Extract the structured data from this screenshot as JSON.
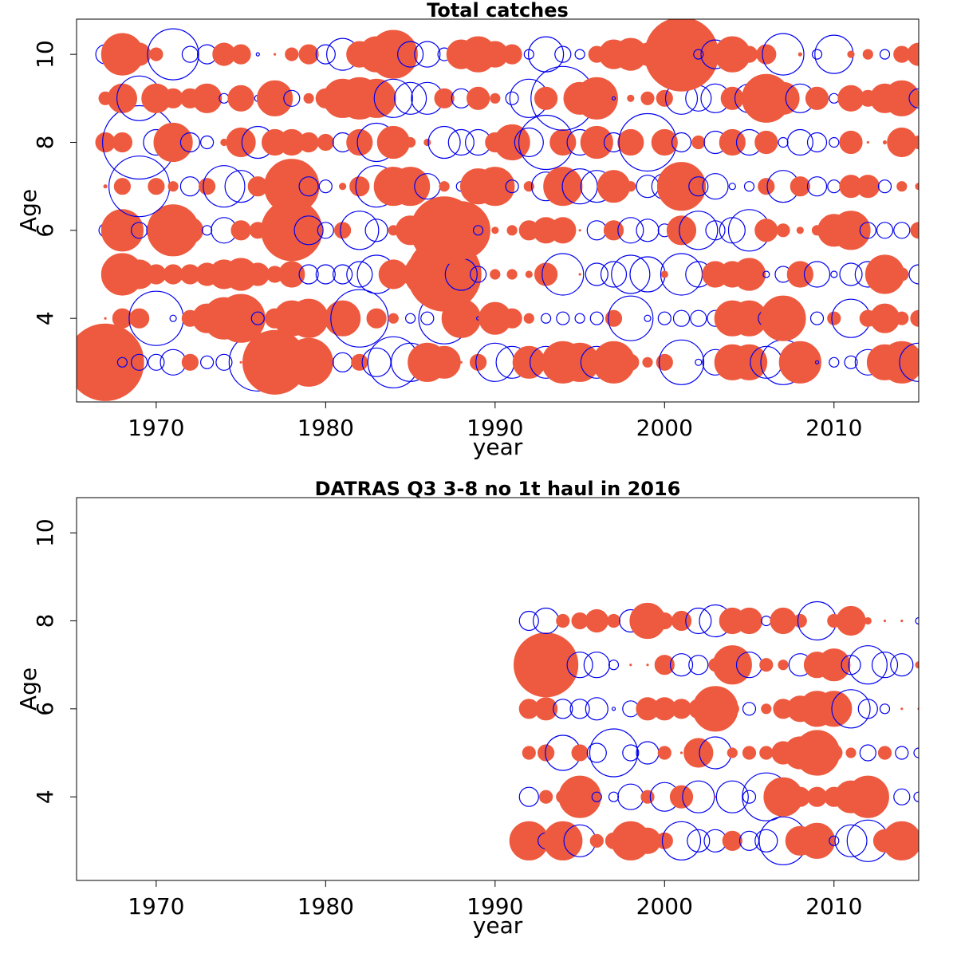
{
  "colors": {
    "positive": "#EE5A3F",
    "negative": "#0000EE",
    "axis": "#000000"
  },
  "chart_data": [
    {
      "type": "scatter",
      "subtype": "bubble-residuals",
      "title": "Total catches",
      "xlabel": "year",
      "ylabel": "Age",
      "xlim": [
        1965.3,
        2015.0
      ],
      "ylim": [
        2.1,
        10.8
      ],
      "xticks": [
        1970,
        1980,
        1990,
        2000,
        2010
      ],
      "yticks": [
        4,
        6,
        8,
        10
      ],
      "ages": [
        3,
        4,
        5,
        6,
        7,
        8,
        9,
        10
      ],
      "years": [
        1967,
        1968,
        1969,
        1970,
        1971,
        1972,
        1973,
        1974,
        1975,
        1976,
        1977,
        1978,
        1979,
        1980,
        1981,
        1982,
        1983,
        1984,
        1985,
        1986,
        1987,
        1988,
        1989,
        1990,
        1991,
        1992,
        1993,
        1994,
        1995,
        1996,
        1997,
        1998,
        1999,
        2000,
        2001,
        2002,
        2003,
        2004,
        2005,
        2006,
        2007,
        2008,
        2009,
        2010,
        2011,
        2012,
        2013,
        2014,
        2015
      ],
      "residuals": {
        "3": [
          2.4,
          -0.3,
          -0.5,
          -0.5,
          -0.8,
          0.5,
          -0.4,
          -0.5,
          0.05,
          -1.8,
          2.0,
          -0.2,
          1.5,
          0.5,
          -0.6,
          0.5,
          -0.9,
          -1.6,
          -1.2,
          1.2,
          1.0,
          0.05,
          0.5,
          -1.2,
          -1.0,
          1.0,
          -1.0,
          1.3,
          1.2,
          -1.0,
          1.3,
          0.5,
          0.3,
          0.5,
          -1.4,
          -0.2,
          -0.8,
          1.1,
          1.1,
          -1.0,
          -1.4,
          1.3,
          -0.1,
          -0.3,
          -0.4,
          -0.8,
          1.1,
          1.3,
          -1.2
        ],
        "4": [
          0.05,
          0.6,
          0.6,
          -1.7,
          -0.2,
          0.5,
          0.9,
          1.3,
          1.5,
          -0.4,
          0.6,
          1.1,
          1.2,
          0.05,
          1.1,
          -1.8,
          0.6,
          0.3,
          -0.3,
          -0.4,
          -1.6,
          1.2,
          -0.1,
          1.0,
          0.6,
          0.3,
          -0.3,
          -0.4,
          -0.3,
          -0.4,
          0.5,
          -1.4,
          -0.2,
          -0.4,
          -0.5,
          -0.5,
          -0.5,
          1.1,
          1.1,
          -0.5,
          1.4,
          0.05,
          -0.4,
          0.4,
          -1.2,
          0.5,
          0.9,
          0.4,
          0.5
        ],
        "5": [
          -0.2,
          1.3,
          0.9,
          0.6,
          0.6,
          0.6,
          0.7,
          0.9,
          1.0,
          0.7,
          0.5,
          0.8,
          -0.6,
          -0.6,
          -0.6,
          -0.8,
          -1.2,
          0.9,
          0.6,
          1.4,
          2.3,
          -1.0,
          -0.5,
          0.3,
          0.3,
          0.2,
          0.7,
          -1.3,
          0.05,
          -0.7,
          -0.8,
          -1.2,
          -1.1,
          0.2,
          -1.3,
          -0.8,
          0.8,
          0.8,
          1.0,
          -0.2,
          -0.5,
          0.8,
          -0.8,
          -0.2,
          -0.7,
          -0.8,
          1.2,
          0.4,
          -0.6
        ],
        "6": [
          -0.4,
          1.3,
          -0.5,
          -0.6,
          1.6,
          0.8,
          -0.3,
          -0.8,
          0.6,
          0.5,
          0.9,
          1.9,
          -0.9,
          -0.5,
          0.5,
          -1.2,
          -0.7,
          0.3,
          0.9,
          0.3,
          2.1,
          1.8,
          -0.3,
          0.2,
          0.3,
          0.6,
          0.8,
          0.8,
          0.05,
          -0.6,
          0.6,
          -0.8,
          -0.7,
          -0.4,
          0.9,
          -1.2,
          -0.6,
          -0.8,
          -1.3,
          0.7,
          0.4,
          0.2,
          0.3,
          1.0,
          1.2,
          -0.5,
          -0.5,
          -0.5,
          0.5
        ],
        "7": [
          0.1,
          0.5,
          -1.9,
          0.5,
          0.3,
          -0.6,
          0.5,
          -1.3,
          -1.0,
          0.6,
          -0.5,
          1.7,
          -0.6,
          -0.4,
          0.2,
          0.6,
          -1.3,
          1.2,
          1.2,
          -0.8,
          0.3,
          -0.3,
          1.1,
          1.2,
          -0.4,
          0.3,
          -0.9,
          1.2,
          -1.1,
          -1.0,
          1.0,
          0.3,
          -0.7,
          -0.8,
          1.5,
          -0.6,
          -0.8,
          -0.2,
          -0.3,
          0.5,
          -1.0,
          0.6,
          -0.6,
          -0.4,
          0.7,
          0.7,
          -0.4,
          0.3,
          0.2
        ],
        "8": [
          0.6,
          0.6,
          -2.3,
          -0.8,
          1.2,
          -0.6,
          -0.4,
          0.2,
          0.9,
          -1.0,
          0.8,
          0.8,
          0.6,
          0.5,
          -0.6,
          0.8,
          -1.2,
          1.0,
          0.3,
          0.2,
          -1.0,
          -0.8,
          -0.8,
          0.6,
          1.1,
          -0.9,
          -1.7,
          0.8,
          -0.8,
          1.0,
          -0.6,
          0.8,
          -1.8,
          0.8,
          -0.6,
          0.4,
          -0.7,
          0.8,
          -0.8,
          0.7,
          -0.3,
          -0.8,
          -0.6,
          -0.3,
          0.7,
          0.05,
          0.1,
          0.9,
          0.4
        ],
        "9": [
          0.4,
          0.9,
          -1.4,
          0.9,
          0.6,
          0.6,
          0.9,
          -0.3,
          0.8,
          -0.2,
          1.1,
          -0.5,
          0.3,
          0.6,
          1.2,
          1.3,
          1.2,
          -1.2,
          -1.0,
          -1.0,
          0.6,
          -0.6,
          0.7,
          0.3,
          -0.4,
          -1.2,
          0.7,
          -2.0,
          1.0,
          1.3,
          -0.1,
          0.2,
          0.4,
          0.5,
          -1.0,
          -0.8,
          -0.9,
          0.7,
          -0.9,
          1.5,
          1.0,
          -0.9,
          0.7,
          -0.3,
          0.8,
          0.5,
          0.9,
          1.1,
          -0.6
        ],
        "10": [
          -0.6,
          1.3,
          0.7,
          0.4,
          -1.6,
          -0.5,
          -0.6,
          0.7,
          0.6,
          -0.1,
          0.05,
          0.4,
          0.6,
          -0.6,
          -1.0,
          0.8,
          1.1,
          1.5,
          -0.8,
          -0.8,
          -0.4,
          0.9,
          1.1,
          0.8,
          0.6,
          -0.3,
          -1.1,
          -0.5,
          -0.3,
          0.5,
          0.9,
          1.0,
          0.7,
          1.2,
          2.3,
          -0.3,
          -0.9,
          1.1,
          0.5,
          0.6,
          -1.3,
          0.1,
          -0.3,
          -1.2,
          0.2,
          0.3,
          -0.3,
          0.5,
          0.7
        ]
      }
    },
    {
      "type": "scatter",
      "subtype": "bubble-residuals",
      "title": "DATRAS Q3 3-8 no 1t haul in 2016",
      "xlabel": "year",
      "ylabel": "Age",
      "xlim": [
        1965.3,
        2015.0
      ],
      "ylim": [
        2.1,
        10.8
      ],
      "xticks": [
        1970,
        1980,
        1990,
        2000,
        2010
      ],
      "yticks": [
        4,
        6,
        8,
        10
      ],
      "ages": [
        3,
        4,
        5,
        6,
        7,
        8
      ],
      "years": [
        1992,
        1993,
        1994,
        1995,
        1996,
        1997,
        1998,
        1999,
        2000,
        2001,
        2002,
        2003,
        2004,
        2005,
        2006,
        2007,
        2008,
        2009,
        2010,
        2011,
        2012,
        2013,
        2014,
        2015
      ],
      "residuals": {
        "3": [
          1.2,
          -0.5,
          1.2,
          -1.0,
          0.4,
          0.5,
          1.2,
          0.8,
          0.5,
          -1.2,
          -0.7,
          -0.7,
          0.6,
          -0.6,
          -0.7,
          -1.5,
          0.9,
          1.1,
          -0.3,
          -1.0,
          -1.3,
          0.7,
          1.2,
          0.5
        ],
        "4": [
          -0.6,
          0.4,
          0.4,
          1.3,
          -0.3,
          -0.3,
          -0.8,
          0.4,
          -0.9,
          0.7,
          -1.0,
          0.05,
          -1.0,
          -0.4,
          -1.5,
          1.2,
          0.6,
          0.6,
          0.6,
          1.0,
          1.3,
          0.05,
          -0.5,
          -0.3
        ],
        "5": [
          0.4,
          0.5,
          -1.1,
          0.5,
          -0.6,
          -1.5,
          -0.5,
          -0.7,
          0.4,
          0.05,
          0.9,
          -1.0,
          0.3,
          0.4,
          0.4,
          0.7,
          1.0,
          1.4,
          0.5,
          0.3,
          -0.5,
          0.4,
          -0.4,
          -0.3
        ],
        "6": [
          0.6,
          0.7,
          -0.6,
          -0.6,
          -0.7,
          -0.1,
          -0.5,
          0.7,
          0.7,
          0.6,
          0.6,
          1.4,
          0.4,
          -0.4,
          0.3,
          0.6,
          0.8,
          1.1,
          1.1,
          -1.2,
          -0.6,
          -0.3,
          0.05,
          0.05
        ],
        "7": [
          -0.6,
          2.0,
          0.8,
          -0.8,
          -0.8,
          -0.3,
          0.05,
          0.05,
          0.6,
          -0.7,
          -0.6,
          0.4,
          1.2,
          -0.8,
          0.4,
          0.3,
          -0.7,
          0.8,
          1.0,
          -0.6,
          -1.2,
          -0.8,
          -0.7,
          0.2
        ],
        "8": [
          -0.6,
          -0.8,
          0.4,
          0.5,
          0.7,
          0.4,
          -0.7,
          1.1,
          0.5,
          0.6,
          -0.8,
          -1.0,
          0.8,
          0.8,
          -0.3,
          0.8,
          0.4,
          -1.2,
          0.4,
          0.9,
          0.2,
          0.05,
          0.05,
          -0.2
        ]
      }
    }
  ]
}
